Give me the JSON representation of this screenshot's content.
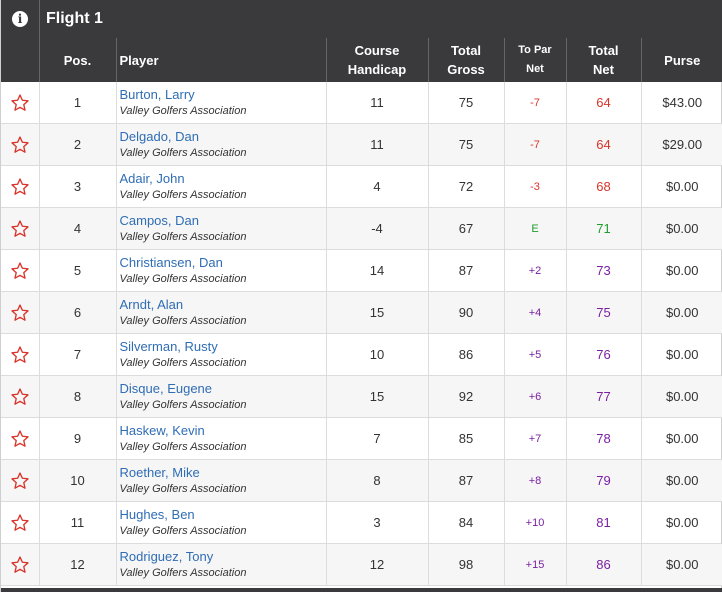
{
  "flight": {
    "title": "Flight 1",
    "info_glyph": "i"
  },
  "colors": {
    "header_bg": "#3a3a3c",
    "link": "#2f6db5",
    "under_par": "#d9342b",
    "even_par": "#1d9d2a",
    "over_par": "#7a1fa2",
    "star": "#d9342b"
  },
  "columns": {
    "pos": "Pos.",
    "player": "Player",
    "course_handicap_1": "Course",
    "course_handicap_2": "Handicap",
    "total_gross_1": "Total",
    "total_gross_2": "Gross",
    "to_par_net_1": "To Par",
    "to_par_net_2": "Net",
    "total_net_1": "Total",
    "total_net_2": "Net",
    "purse": "Purse"
  },
  "rows": [
    {
      "pos": "1",
      "name": "Burton, Larry",
      "assoc": "Valley Golfers Association",
      "handicap": "11",
      "gross": "75",
      "to_par": "-7",
      "to_par_status": "under",
      "net": "64",
      "purse": "$43.00"
    },
    {
      "pos": "2",
      "name": "Delgado, Dan",
      "assoc": "Valley Golfers Association",
      "handicap": "11",
      "gross": "75",
      "to_par": "-7",
      "to_par_status": "under",
      "net": "64",
      "purse": "$29.00"
    },
    {
      "pos": "3",
      "name": "Adair, John",
      "assoc": "Valley Golfers Association",
      "handicap": "4",
      "gross": "72",
      "to_par": "-3",
      "to_par_status": "under",
      "net": "68",
      "purse": "$0.00"
    },
    {
      "pos": "4",
      "name": "Campos, Dan",
      "assoc": "Valley Golfers Association",
      "handicap": "-4",
      "gross": "67",
      "to_par": "E",
      "to_par_status": "even",
      "net": "71",
      "purse": "$0.00"
    },
    {
      "pos": "5",
      "name": "Christiansen, Dan",
      "assoc": "Valley Golfers Association",
      "handicap": "14",
      "gross": "87",
      "to_par": "+2",
      "to_par_status": "over",
      "net": "73",
      "purse": "$0.00"
    },
    {
      "pos": "6",
      "name": "Arndt, Alan",
      "assoc": "Valley Golfers Association",
      "handicap": "15",
      "gross": "90",
      "to_par": "+4",
      "to_par_status": "over",
      "net": "75",
      "purse": "$0.00"
    },
    {
      "pos": "7",
      "name": "Silverman, Rusty",
      "assoc": "Valley Golfers Association",
      "handicap": "10",
      "gross": "86",
      "to_par": "+5",
      "to_par_status": "over",
      "net": "76",
      "purse": "$0.00"
    },
    {
      "pos": "8",
      "name": "Disque, Eugene",
      "assoc": "Valley Golfers Association",
      "handicap": "15",
      "gross": "92",
      "to_par": "+6",
      "to_par_status": "over",
      "net": "77",
      "purse": "$0.00"
    },
    {
      "pos": "9",
      "name": "Haskew, Kevin",
      "assoc": "Valley Golfers Association",
      "handicap": "7",
      "gross": "85",
      "to_par": "+7",
      "to_par_status": "over",
      "net": "78",
      "purse": "$0.00"
    },
    {
      "pos": "10",
      "name": "Roether, Mike",
      "assoc": "Valley Golfers Association",
      "handicap": "8",
      "gross": "87",
      "to_par": "+8",
      "to_par_status": "over",
      "net": "79",
      "purse": "$0.00"
    },
    {
      "pos": "11",
      "name": "Hughes, Ben",
      "assoc": "Valley Golfers Association",
      "handicap": "3",
      "gross": "84",
      "to_par": "+10",
      "to_par_status": "over",
      "net": "81",
      "purse": "$0.00"
    },
    {
      "pos": "12",
      "name": "Rodriguez, Tony",
      "assoc": "Valley Golfers Association",
      "handicap": "12",
      "gross": "98",
      "to_par": "+15",
      "to_par_status": "over",
      "net": "86",
      "purse": "$0.00"
    }
  ]
}
